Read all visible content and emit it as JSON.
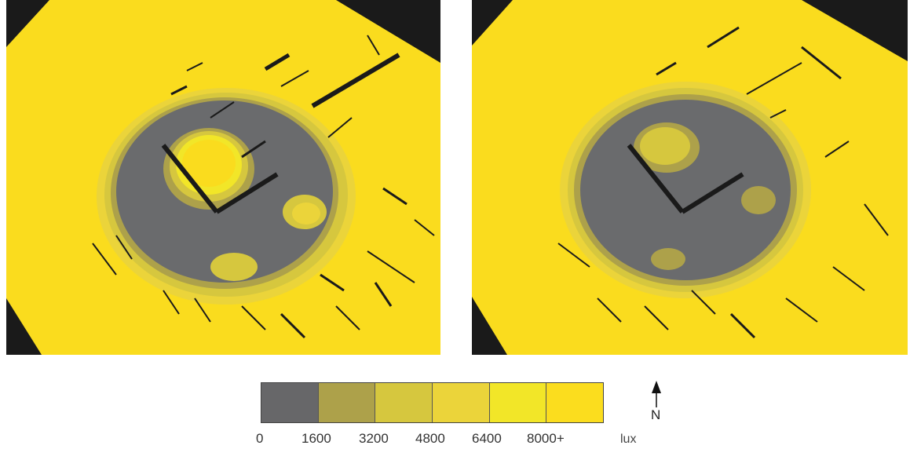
{
  "legend": {
    "unit": "lux",
    "bins": [
      {
        "color": "#676769"
      },
      {
        "color": "#ADA14A"
      },
      {
        "color": "#D6C73E"
      },
      {
        "color": "#EBD43A"
      },
      {
        "color": "#F2E628"
      },
      {
        "color": "#FBDD1E"
      }
    ],
    "ticks": [
      "0",
      "1600",
      "3200",
      "4800",
      "6400",
      "8000+"
    ]
  },
  "compass": {
    "label": "N"
  },
  "colors": {
    "background_dark": "#1a1a1a",
    "gray": "#6a6b6d",
    "yellow": "#FADC1E"
  }
}
